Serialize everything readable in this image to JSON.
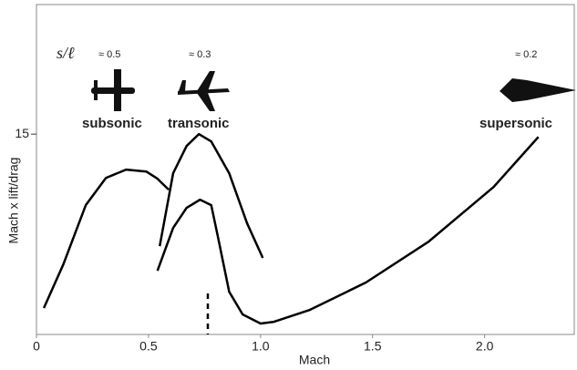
{
  "chart_data": {
    "type": "line",
    "x_label": "Mach",
    "y_label": "Mach x lift/drag",
    "xlim": [
      0,
      2.4
    ],
    "ylim": [
      0,
      24.7
    ],
    "xticks": [
      0,
      0.5,
      {
        "value": 1,
        "label": "1.0"
      },
      1.5,
      {
        "value": 2,
        "label": "2.0"
      }
    ],
    "yticks": [
      15
    ],
    "annotations": [
      "s/ℓ",
      "≈ 0.5",
      "≈ 0.3",
      "≈ 0.2",
      "subsonic",
      "transonic",
      "supersonic"
    ],
    "series": [
      {
        "color": "#000000",
        "x": [
          0.033,
          0.12,
          0.22,
          0.31,
          0.4,
          0.49,
          0.54,
          0.59
        ],
        "values": [
          1.98,
          5.25,
          9.68,
          11.72,
          12.34,
          12.2,
          11.66,
          10.84
        ]
      },
      {
        "color": "#000000",
        "x": [
          0.55,
          0.61,
          0.67,
          0.725,
          0.78,
          0.86,
          0.94,
          1.01
        ],
        "values": [
          6.61,
          12.07,
          14.11,
          15.0,
          14.45,
          12.07,
          8.32,
          5.73
        ]
      },
      {
        "color": "#000000",
        "x": [
          0.54,
          0.61,
          0.67,
          0.73,
          0.78,
          0.81,
          0.86,
          0.92,
          1.0,
          1.06,
          1.22,
          1.47,
          1.75,
          2.04,
          2.24
        ],
        "values": [
          4.77,
          7.98,
          9.48,
          10.09,
          9.68,
          7.29,
          3.2,
          1.5,
          0.82,
          0.95,
          1.84,
          3.89,
          6.95,
          11.04,
          14.79
        ]
      }
    ]
  }
}
